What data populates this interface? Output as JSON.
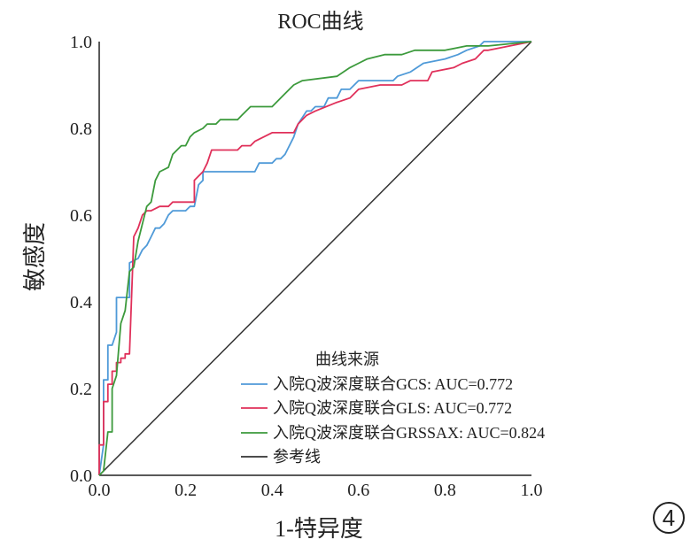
{
  "chart_data": {
    "type": "line",
    "title": "ROC曲线",
    "xlabel": "1-特异度",
    "ylabel": "敏感度",
    "xlim": [
      0,
      1
    ],
    "ylim": [
      0,
      1
    ],
    "xticks": [
      "0.0",
      "0.2",
      "0.4",
      "0.6",
      "0.8",
      "1.0"
    ],
    "yticks": [
      "0.0",
      "0.2",
      "0.4",
      "0.6",
      "0.8",
      "1.0"
    ],
    "legend_title": "曲线来源",
    "legend_position": "bottom-right",
    "grid": false,
    "series": [
      {
        "name": "入院Q波深度联合GCS: AUC=0.772",
        "color": "#4f9ad8",
        "points": [
          [
            0,
            0
          ],
          [
            0.01,
            0.07
          ],
          [
            0.01,
            0.22
          ],
          [
            0.02,
            0.22
          ],
          [
            0.02,
            0.3
          ],
          [
            0.03,
            0.3
          ],
          [
            0.04,
            0.33
          ],
          [
            0.04,
            0.41
          ],
          [
            0.07,
            0.41
          ],
          [
            0.07,
            0.49
          ],
          [
            0.09,
            0.5
          ],
          [
            0.1,
            0.52
          ],
          [
            0.11,
            0.53
          ],
          [
            0.12,
            0.55
          ],
          [
            0.13,
            0.57
          ],
          [
            0.14,
            0.57
          ],
          [
            0.15,
            0.58
          ],
          [
            0.16,
            0.6
          ],
          [
            0.17,
            0.61
          ],
          [
            0.2,
            0.61
          ],
          [
            0.21,
            0.62
          ],
          [
            0.22,
            0.62
          ],
          [
            0.23,
            0.67
          ],
          [
            0.24,
            0.68
          ],
          [
            0.24,
            0.7
          ],
          [
            0.36,
            0.7
          ],
          [
            0.37,
            0.72
          ],
          [
            0.4,
            0.72
          ],
          [
            0.41,
            0.73
          ],
          [
            0.42,
            0.73
          ],
          [
            0.43,
            0.74
          ],
          [
            0.45,
            0.78
          ],
          [
            0.46,
            0.81
          ],
          [
            0.48,
            0.84
          ],
          [
            0.49,
            0.84
          ],
          [
            0.5,
            0.85
          ],
          [
            0.52,
            0.85
          ],
          [
            0.53,
            0.87
          ],
          [
            0.55,
            0.87
          ],
          [
            0.56,
            0.89
          ],
          [
            0.58,
            0.89
          ],
          [
            0.6,
            0.91
          ],
          [
            0.68,
            0.91
          ],
          [
            0.69,
            0.92
          ],
          [
            0.72,
            0.93
          ],
          [
            0.75,
            0.95
          ],
          [
            0.8,
            0.96
          ],
          [
            0.83,
            0.97
          ],
          [
            0.85,
            0.98
          ],
          [
            0.88,
            0.99
          ],
          [
            0.89,
            1.0
          ],
          [
            1.0,
            1.0
          ]
        ]
      },
      {
        "name": "入院Q波深度联合GLS: AUC=0.772",
        "color": "#e0305a",
        "points": [
          [
            0,
            0
          ],
          [
            0,
            0.07
          ],
          [
            0.01,
            0.07
          ],
          [
            0.01,
            0.17
          ],
          [
            0.02,
            0.17
          ],
          [
            0.02,
            0.21
          ],
          [
            0.03,
            0.21
          ],
          [
            0.03,
            0.24
          ],
          [
            0.04,
            0.24
          ],
          [
            0.04,
            0.26
          ],
          [
            0.05,
            0.26
          ],
          [
            0.05,
            0.27
          ],
          [
            0.06,
            0.27
          ],
          [
            0.06,
            0.28
          ],
          [
            0.07,
            0.28
          ],
          [
            0.08,
            0.55
          ],
          [
            0.09,
            0.57
          ],
          [
            0.1,
            0.6
          ],
          [
            0.11,
            0.61
          ],
          [
            0.12,
            0.61
          ],
          [
            0.14,
            0.62
          ],
          [
            0.16,
            0.62
          ],
          [
            0.17,
            0.63
          ],
          [
            0.22,
            0.63
          ],
          [
            0.22,
            0.68
          ],
          [
            0.24,
            0.7
          ],
          [
            0.25,
            0.72
          ],
          [
            0.26,
            0.75
          ],
          [
            0.32,
            0.75
          ],
          [
            0.33,
            0.76
          ],
          [
            0.35,
            0.76
          ],
          [
            0.36,
            0.77
          ],
          [
            0.4,
            0.79
          ],
          [
            0.45,
            0.79
          ],
          [
            0.46,
            0.81
          ],
          [
            0.48,
            0.83
          ],
          [
            0.5,
            0.84
          ],
          [
            0.55,
            0.86
          ],
          [
            0.58,
            0.87
          ],
          [
            0.6,
            0.89
          ],
          [
            0.65,
            0.9
          ],
          [
            0.7,
            0.9
          ],
          [
            0.72,
            0.91
          ],
          [
            0.76,
            0.91
          ],
          [
            0.77,
            0.93
          ],
          [
            0.82,
            0.94
          ],
          [
            0.84,
            0.95
          ],
          [
            0.87,
            0.96
          ],
          [
            0.89,
            0.98
          ],
          [
            0.9,
            0.98
          ],
          [
            0.95,
            0.99
          ],
          [
            1.0,
            1.0
          ]
        ]
      },
      {
        "name": "入院Q波深度联合GRSSAX: AUC=0.824",
        "color": "#3c9a3c",
        "points": [
          [
            0,
            0
          ],
          [
            0.01,
            0.01
          ],
          [
            0.02,
            0.1
          ],
          [
            0.03,
            0.1
          ],
          [
            0.03,
            0.2
          ],
          [
            0.04,
            0.23
          ],
          [
            0.05,
            0.35
          ],
          [
            0.06,
            0.38
          ],
          [
            0.07,
            0.47
          ],
          [
            0.08,
            0.48
          ],
          [
            0.09,
            0.54
          ],
          [
            0.11,
            0.62
          ],
          [
            0.12,
            0.63
          ],
          [
            0.13,
            0.68
          ],
          [
            0.14,
            0.7
          ],
          [
            0.16,
            0.71
          ],
          [
            0.17,
            0.74
          ],
          [
            0.19,
            0.76
          ],
          [
            0.2,
            0.76
          ],
          [
            0.21,
            0.78
          ],
          [
            0.22,
            0.79
          ],
          [
            0.24,
            0.8
          ],
          [
            0.25,
            0.81
          ],
          [
            0.27,
            0.81
          ],
          [
            0.28,
            0.82
          ],
          [
            0.32,
            0.82
          ],
          [
            0.33,
            0.83
          ],
          [
            0.35,
            0.85
          ],
          [
            0.4,
            0.85
          ],
          [
            0.43,
            0.88
          ],
          [
            0.44,
            0.89
          ],
          [
            0.45,
            0.9
          ],
          [
            0.47,
            0.91
          ],
          [
            0.55,
            0.92
          ],
          [
            0.58,
            0.94
          ],
          [
            0.6,
            0.95
          ],
          [
            0.62,
            0.96
          ],
          [
            0.66,
            0.97
          ],
          [
            0.7,
            0.97
          ],
          [
            0.73,
            0.98
          ],
          [
            0.8,
            0.98
          ],
          [
            0.85,
            0.99
          ],
          [
            0.9,
            0.99
          ],
          [
            1.0,
            1.0
          ]
        ]
      },
      {
        "name": "参考线",
        "color": "#333333",
        "points": [
          [
            0,
            0
          ],
          [
            1,
            1
          ]
        ]
      }
    ]
  },
  "badge": {
    "label": "4"
  }
}
